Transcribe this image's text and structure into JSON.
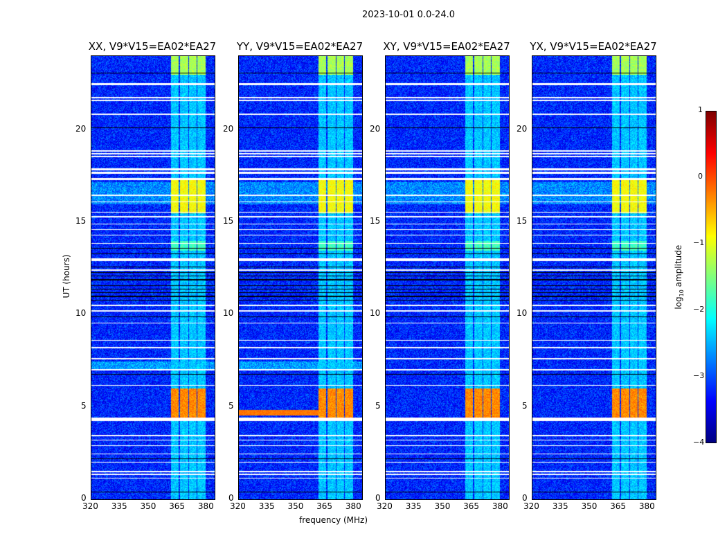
{
  "chart_data": {
    "type": "heatmap",
    "title": "2023-10-01 0.0-24.0",
    "xlabel": "frequency (MHz)",
    "ylabel": "UT (hours)",
    "xlim": [
      320,
      384
    ],
    "ylim": [
      0,
      24
    ],
    "xticks": [
      "320",
      "335",
      "350",
      "365",
      "380"
    ],
    "xtick_values": [
      320,
      335,
      350,
      365,
      380
    ],
    "yticks": [
      "0",
      "5",
      "10",
      "15",
      "20"
    ],
    "ytick_values": [
      0,
      5,
      10,
      15,
      20
    ],
    "colorbar": {
      "label": "log10 amplitude",
      "label_main": "log",
      "label_sub": "10",
      "label_rest": " amplitude",
      "range": [
        -4,
        1
      ],
      "ticks": [
        "1",
        "0",
        "−1",
        "−2",
        "−3",
        "−4"
      ],
      "tick_values": [
        1,
        0,
        -1,
        -2,
        -3,
        -4
      ],
      "colormap": "jet"
    },
    "panels": [
      {
        "title": "XX, V9*V15=EA02*EA27",
        "pol": "XX"
      },
      {
        "title": "YY, V9*V15=EA02*EA27",
        "pol": "YY"
      },
      {
        "title": "XY, V9*V15=EA02*EA27",
        "pol": "XY"
      },
      {
        "title": "YX, V9*V15=EA02*EA27",
        "pol": "YX"
      }
    ],
    "rfi_subbands_mhz": [
      [
        361,
        365
      ],
      [
        366,
        370
      ],
      [
        370.5,
        374.5
      ],
      [
        375,
        379
      ]
    ],
    "bright_periods_ut": [
      {
        "range": [
          23.0,
          24.0
        ],
        "level": -1.3
      },
      {
        "range": [
          15.5,
          17.3
        ],
        "level": -0.9
      },
      {
        "range": [
          4.4,
          6.0
        ],
        "level": -0.3
      },
      {
        "range": [
          13.5,
          14.0
        ],
        "level": -1.8
      }
    ],
    "flagged_ut": [
      [
        22.45,
        22.55
      ],
      [
        21.75,
        21.8
      ],
      [
        21.6,
        21.65
      ],
      [
        20.85,
        20.9
      ],
      [
        18.85,
        18.9
      ],
      [
        18.7,
        18.75
      ],
      [
        18.55,
        18.6
      ],
      [
        17.85,
        17.95
      ],
      [
        17.65,
        17.75
      ],
      [
        17.3,
        17.4
      ],
      [
        16.45,
        16.5
      ],
      [
        16.1,
        16.15
      ],
      [
        15.55,
        15.6
      ],
      [
        15.3,
        15.35
      ],
      [
        14.9,
        14.95
      ],
      [
        14.6,
        14.65
      ],
      [
        14.3,
        14.35
      ],
      [
        13.85,
        13.9
      ],
      [
        12.9,
        13.05
      ],
      [
        12.4,
        12.45
      ],
      [
        10.5,
        10.55
      ],
      [
        10.2,
        10.25
      ],
      [
        9.55,
        9.6
      ],
      [
        8.6,
        8.65
      ],
      [
        8.2,
        8.25
      ],
      [
        7.6,
        7.65
      ],
      [
        7.0,
        7.05
      ],
      [
        6.15,
        6.2
      ],
      [
        4.25,
        4.45
      ],
      [
        3.45,
        3.5
      ],
      [
        3.2,
        3.25
      ],
      [
        2.9,
        2.95
      ],
      [
        2.45,
        2.5
      ],
      [
        2.0,
        2.05
      ],
      [
        1.5,
        1.55
      ],
      [
        1.35,
        1.4
      ],
      [
        1.15,
        1.2
      ]
    ],
    "dark_lines_ut": [
      23.1,
      20.15,
      13.6,
      13.3,
      12.6,
      12.3,
      12.1,
      11.9,
      11.6,
      11.4,
      11.2,
      11.0,
      10.8,
      9.9,
      6.8,
      6.2,
      2.2,
      0.4
    ]
  }
}
